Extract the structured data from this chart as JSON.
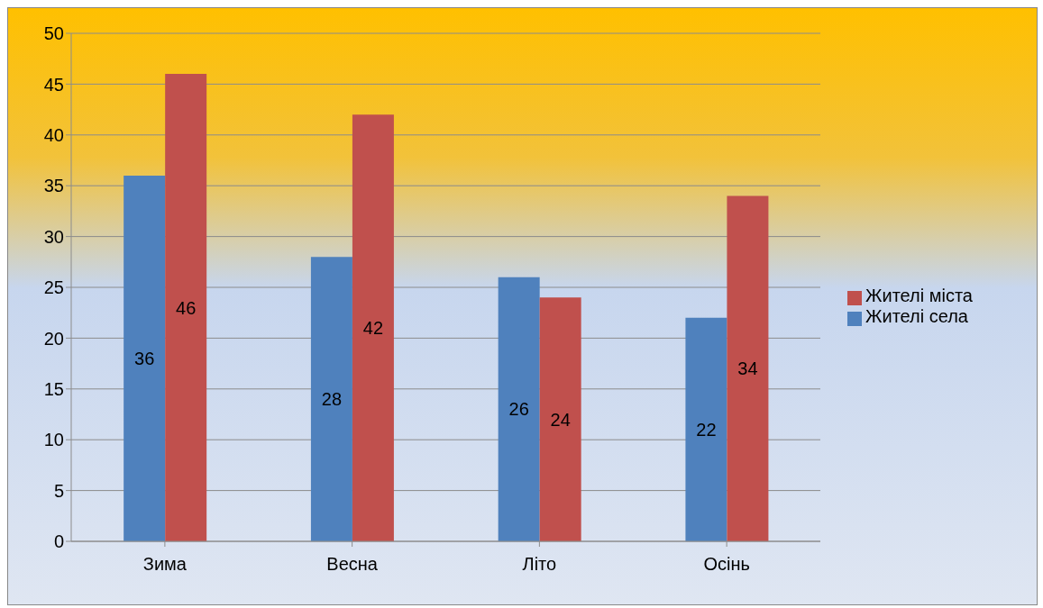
{
  "chart_data": {
    "type": "bar",
    "categories": [
      "Зима",
      "Весна",
      "Літо",
      "Осінь"
    ],
    "series": [
      {
        "name": "Жителі села",
        "color": "#4f81bd",
        "values": [
          36,
          28,
          26,
          22
        ]
      },
      {
        "name": "Жителі міста",
        "color": "#c0504d",
        "values": [
          46,
          42,
          24,
          34
        ]
      }
    ],
    "ylim": [
      0,
      50
    ],
    "yticks": [
      0,
      5,
      10,
      15,
      20,
      25,
      30,
      35,
      40,
      45,
      50
    ],
    "grid": "y",
    "legend": "right",
    "data_labels": true
  }
}
